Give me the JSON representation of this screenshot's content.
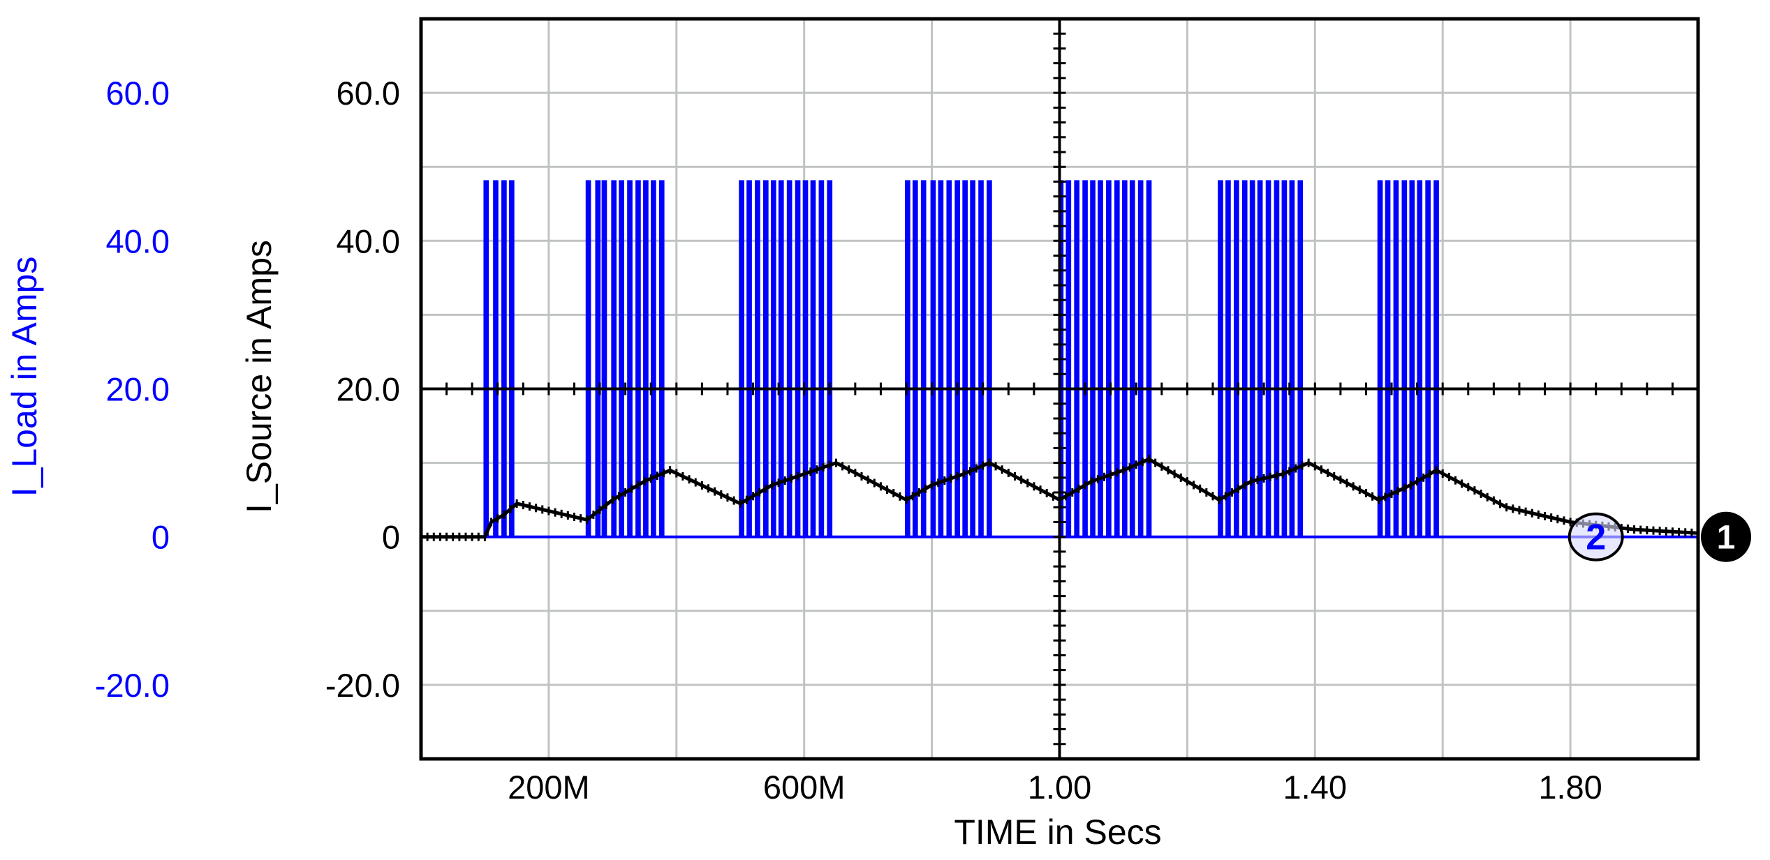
{
  "chart_data": {
    "type": "line",
    "xlabel": "TIME in Secs",
    "x_tick_labels": [
      "200M",
      "600M",
      "1.00",
      "1.40",
      "1.80"
    ],
    "x_ticks": [
      0.2,
      0.6,
      1.0,
      1.4,
      1.8
    ],
    "xlim": [
      0,
      2.0
    ],
    "y_axes": [
      {
        "id": "left-blue",
        "label": "I_Load in Amps",
        "tick_labels": [
          "60.0",
          "40.0",
          "20.0",
          "0",
          "-20.0"
        ],
        "ticks": [
          60,
          40,
          20,
          0,
          -20
        ],
        "color": "#0000ff"
      },
      {
        "id": "left-black",
        "label": "I_Source in Amps",
        "tick_labels": [
          "60.0",
          "40.0",
          "20.0",
          "0",
          "-20.0"
        ],
        "ticks": [
          60,
          40,
          20,
          0,
          -20
        ],
        "color": "#000000"
      }
    ],
    "ylim": [
      -30,
      70
    ],
    "grid": true,
    "grid_color": "#c0c4c0",
    "series": [
      {
        "name": "I_Load in Amps",
        "marker": "2",
        "color": "#0000ff",
        "pulse_height": 48,
        "pulse_width": 0.004,
        "pulse_starts": [
          0.1,
          0.115,
          0.128,
          0.14,
          0.26,
          0.275,
          0.285,
          0.3,
          0.312,
          0.325,
          0.338,
          0.35,
          0.362,
          0.375,
          0.5,
          0.512,
          0.525,
          0.538,
          0.55,
          0.562,
          0.575,
          0.588,
          0.6,
          0.612,
          0.625,
          0.638,
          0.76,
          0.772,
          0.785,
          0.8,
          0.812,
          0.825,
          0.838,
          0.85,
          0.862,
          0.875,
          0.888,
          1.0,
          1.012,
          1.025,
          1.038,
          1.05,
          1.062,
          1.075,
          1.088,
          1.1,
          1.112,
          1.125,
          1.138,
          1.25,
          1.262,
          1.275,
          1.288,
          1.3,
          1.312,
          1.325,
          1.338,
          1.35,
          1.362,
          1.375,
          1.5,
          1.512,
          1.525,
          1.538,
          1.55,
          1.562,
          1.575,
          1.588
        ]
      },
      {
        "name": "I_Source in Amps",
        "marker": "1",
        "color": "#000000",
        "x": [
          0,
          0.1,
          0.11,
          0.13,
          0.15,
          0.26,
          0.3,
          0.35,
          0.39,
          0.5,
          0.55,
          0.6,
          0.65,
          0.76,
          0.8,
          0.85,
          0.89,
          1.0,
          1.05,
          1.1,
          1.14,
          1.25,
          1.3,
          1.35,
          1.39,
          1.5,
          1.55,
          1.59,
          1.7,
          1.8,
          1.9,
          2.0
        ],
        "y": [
          0,
          0,
          2,
          3,
          4.5,
          2.3,
          5,
          7.5,
          9,
          4.5,
          7,
          8.5,
          10,
          5,
          7,
          8.5,
          10,
          5,
          7.5,
          9,
          10.5,
          5,
          7.5,
          8.5,
          10,
          5,
          7,
          9,
          4,
          2,
          1,
          0.5
        ]
      }
    ],
    "markers": [
      {
        "label": "1",
        "series": "I_Source in Amps"
      },
      {
        "label": "2",
        "series": "I_Load in Amps"
      }
    ]
  }
}
